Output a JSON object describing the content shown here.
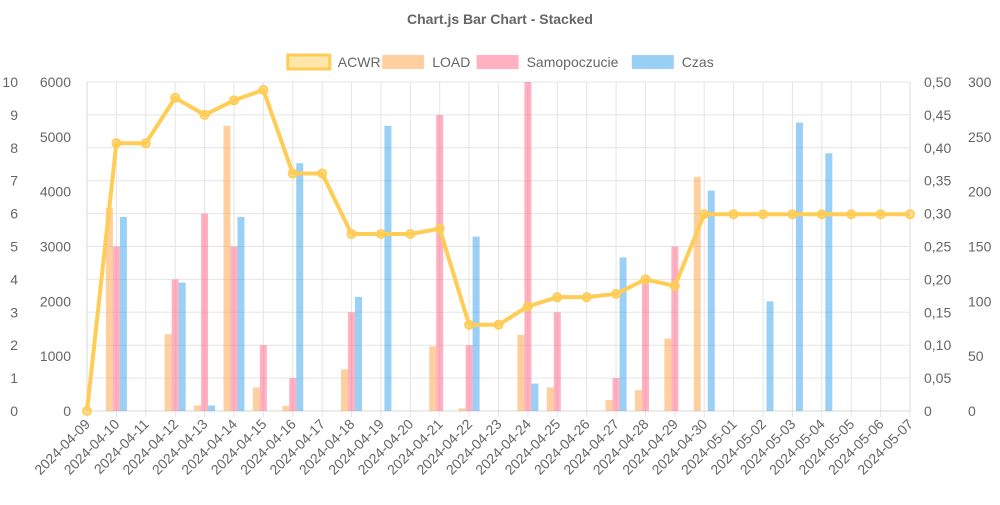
{
  "chart_data": {
    "type": "bar",
    "title": "Chart.js Bar Chart - Stacked",
    "categories": [
      "2024-04-09",
      "2024-04-10",
      "2024-04-11",
      "2024-04-12",
      "2024-04-13",
      "2024-04-14",
      "2024-04-15",
      "2024-04-16",
      "2024-04-17",
      "2024-04-18",
      "2024-04-19",
      "2024-04-20",
      "2024-04-21",
      "2024-04-22",
      "2024-04-23",
      "2024-04-24",
      "2024-04-25",
      "2024-04-26",
      "2024-04-27",
      "2024-04-28",
      "2024-04-29",
      "2024-04-30",
      "2024-05-01",
      "2024-05-02",
      "2024-05-03",
      "2024-05-04",
      "2024-05-05",
      "2024-05-06",
      "2024-05-07"
    ],
    "legend_position": "top",
    "grid": true,
    "axes": {
      "y_left_outer": {
        "min": 0,
        "max": 10,
        "ticks": [
          "0",
          "1",
          "2",
          "3",
          "4",
          "5",
          "6",
          "7",
          "8",
          "9",
          "10"
        ]
      },
      "y_left_inner": {
        "min": 0,
        "max": 6000,
        "ticks": [
          "0",
          "1000",
          "2000",
          "3000",
          "4000",
          "5000",
          "6000"
        ]
      },
      "y_right_inner": {
        "min": 0,
        "max": 0.5,
        "ticks": [
          "0",
          "0,05",
          "0,10",
          "0,15",
          "0,20",
          "0,25",
          "0,30",
          "0,35",
          "0,40",
          "0,45",
          "0,50"
        ]
      },
      "y_right_outer": {
        "min": 0,
        "max": 300,
        "ticks": [
          "0",
          "50",
          "100",
          "150",
          "200",
          "250",
          "300"
        ]
      }
    },
    "series": [
      {
        "name": "ACWR",
        "type": "line",
        "axis": "y_right_inner",
        "color": "#ffcd56",
        "values": [
          0,
          0.407,
          0.407,
          0.476,
          0.45,
          0.472,
          0.488,
          0.361,
          0.361,
          0.269,
          0.269,
          0.269,
          0.277,
          0.131,
          0.131,
          0.159,
          0.173,
          0.173,
          0.178,
          0.2,
          0.19,
          0.299,
          0.299,
          0.299,
          0.299,
          0.299,
          0.299,
          0.299,
          0.299
        ]
      },
      {
        "name": "LOAD",
        "type": "bar",
        "axis": "y_left_inner",
        "color": "#ff9f40",
        "values": [
          0,
          3700,
          0,
          1400,
          100,
          5200,
          430,
          90,
          0,
          760,
          0,
          0,
          1180,
          50,
          0,
          1390,
          430,
          0,
          200,
          380,
          1320,
          4270,
          0,
          0,
          0,
          0,
          0,
          0,
          0
        ]
      },
      {
        "name": "Samopoczucie",
        "type": "bar",
        "axis": "y_left_outer",
        "color": "#ff6384",
        "values": [
          0,
          5,
          0,
          4,
          6,
          5,
          2,
          1,
          0,
          3,
          0,
          0,
          9,
          2,
          0,
          10,
          3,
          0,
          1,
          4,
          5,
          0,
          0,
          0,
          0,
          0,
          0,
          0,
          0
        ]
      },
      {
        "name": "Czas",
        "type": "bar",
        "axis": "y_right_outer",
        "color": "#36a2eb",
        "values": [
          0,
          177,
          0,
          117,
          5,
          177,
          0,
          226,
          0,
          104,
          260,
          0,
          0,
          159,
          0,
          25,
          0,
          0,
          140,
          0,
          0,
          201,
          0,
          100,
          263,
          235,
          0,
          0,
          0
        ]
      }
    ]
  }
}
